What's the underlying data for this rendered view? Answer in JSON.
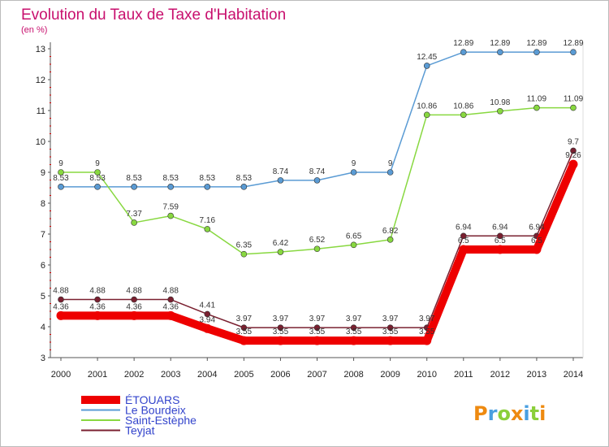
{
  "chart_data": {
    "type": "line",
    "title": "Evolution du Taux de Taxe d'Habitation",
    "subtitle": "(en %)",
    "x": [
      "2000",
      "2001",
      "2002",
      "2003",
      "2004",
      "2005",
      "2006",
      "2007",
      "2008",
      "2009",
      "2010",
      "2011",
      "2012",
      "2013",
      "2014"
    ],
    "yticks": [
      3,
      4,
      5,
      6,
      7,
      8,
      9,
      10,
      11,
      12,
      13
    ],
    "ylim": [
      3,
      13
    ],
    "grid": false,
    "legend_position": "bottom-left",
    "series": [
      {
        "name": "ÉTOUARS",
        "color": "#ee0000",
        "values": [
          4.36,
          4.36,
          4.36,
          4.36,
          3.94,
          3.55,
          3.55,
          3.55,
          3.55,
          3.55,
          3.55,
          6.5,
          6.5,
          6.5,
          9.26
        ],
        "labels": [
          "4.36",
          "4.36",
          "4.36",
          "4.36",
          "3.94",
          "3.55",
          "3.55",
          "3.55",
          "3.55",
          "3.55",
          "3.55",
          "6.5",
          "6.5",
          "6.5",
          "9.26"
        ]
      },
      {
        "name": "Le Bourdeix",
        "color": "#5a9bd4",
        "values": [
          8.53,
          8.53,
          8.53,
          8.53,
          8.53,
          8.53,
          8.74,
          8.74,
          9,
          9,
          12.45,
          12.89,
          12.89,
          12.89,
          12.89
        ],
        "labels": [
          "8.53",
          "8.53",
          "8.53",
          "8.53",
          "8.53",
          "8.53",
          "8.74",
          "8.74",
          "9",
          "9",
          "12.45",
          "12.89",
          "12.89",
          "12.89",
          "12.89"
        ]
      },
      {
        "name": "Saint-Estèphe",
        "color": "#88d840",
        "values": [
          9,
          9,
          7.37,
          7.59,
          7.16,
          6.35,
          6.42,
          6.52,
          6.65,
          6.82,
          10.86,
          10.86,
          10.98,
          11.09,
          11.09
        ],
        "labels": [
          "9",
          "9",
          "7.37",
          "7.59",
          "7.16",
          "6.35",
          "6.42",
          "6.52",
          "6.65",
          "6.82",
          "10.86",
          "10.86",
          "10.98",
          "11.09",
          "11.09"
        ]
      },
      {
        "name": "Teyjat",
        "color": "#7a2030",
        "values": [
          4.88,
          4.88,
          4.88,
          4.88,
          4.41,
          3.97,
          3.97,
          3.97,
          3.97,
          3.97,
          3.97,
          6.94,
          6.94,
          6.94,
          9.7
        ],
        "labels": [
          "4.88",
          "4.88",
          "4.88",
          "4.88",
          "4.41",
          "3.97",
          "3.97",
          "3.97",
          "3.97",
          "3.97",
          "3.97",
          "6.94",
          "6.94",
          "6.94",
          "9.7"
        ]
      }
    ]
  },
  "logo": {
    "text": "Proxiti"
  }
}
